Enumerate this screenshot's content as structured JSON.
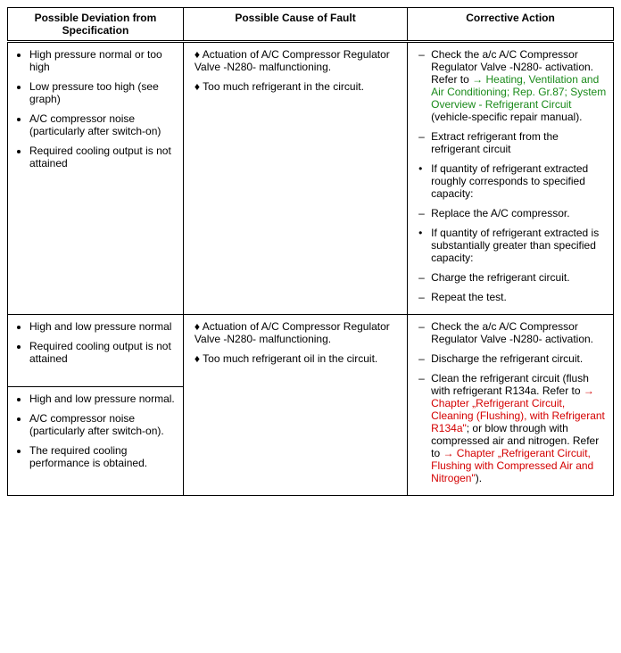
{
  "columns": {
    "c1": "Possible Deviation from Specification",
    "c2": "Possible Cause of Fault",
    "c3": "Corrective Action"
  },
  "widths": {
    "c1": "29%",
    "c2": "37%",
    "c3": "34%"
  },
  "row1": {
    "dev": [
      "High pressure normal or too high",
      "Low pressure too high (see graph)",
      "A/C compressor noise (particularly after switch-on)",
      "Required cooling output is not attained"
    ],
    "cause": [
      "Actuation of A/C Compressor Regulator Valve -N280- malfunctioning.",
      "Too much refrigerant in the circuit."
    ],
    "act": {
      "a1a": "Check the a/c A/C Compressor Regulator Valve -N280- activation. Refer to ",
      "a1link": "→ Heating, Ventilation and Air Conditioning; Rep. Gr.87; System Overview - Refrigerant Circuit",
      "a1b": " (vehicle-specific repair manual).",
      "a2": "Extract refrigerant from the refrigerant circuit",
      "a3": "If quantity of refrigerant extracted roughly corresponds to specified capacity:",
      "a4": "Replace the A/C compressor.",
      "a5": "If quantity of refrigerant extracted is substantially greater than specified capacity:",
      "a6": "Charge the refrigerant circuit.",
      "a7": "Repeat the test."
    }
  },
  "row2a": {
    "dev": [
      "High and low pressure normal",
      "Required cooling output is not attained"
    ]
  },
  "row2b": {
    "dev": [
      "High and low pressure normal.",
      "A/C compressor noise (particularly after switch-on).",
      "The required cooling performance is obtained."
    ]
  },
  "row2cause": [
    "Actuation of A/C Compressor Regulator Valve -N280- malfunctioning.",
    "Too much refrigerant oil in the circuit."
  ],
  "row2act": {
    "a1": "Check the a/c A/C Compressor Regulator Valve -N280- activation.",
    "a2": "Discharge the refrigerant circuit.",
    "a3a": "Clean the refrigerant circuit (flush with refrigerant R134a. Refer to ",
    "a3link1": "→ Chapter „Refrigerant Circuit, Cleaning (Flushing), with Refrigerant R134a\"",
    "a3b": "; or blow through with compressed air and nitrogen. Refer to ",
    "a3link2": "→ Chapter „Refrigerant Circuit, Flushing with Compressed Air and Nitrogen\"",
    "a3c": ")."
  }
}
